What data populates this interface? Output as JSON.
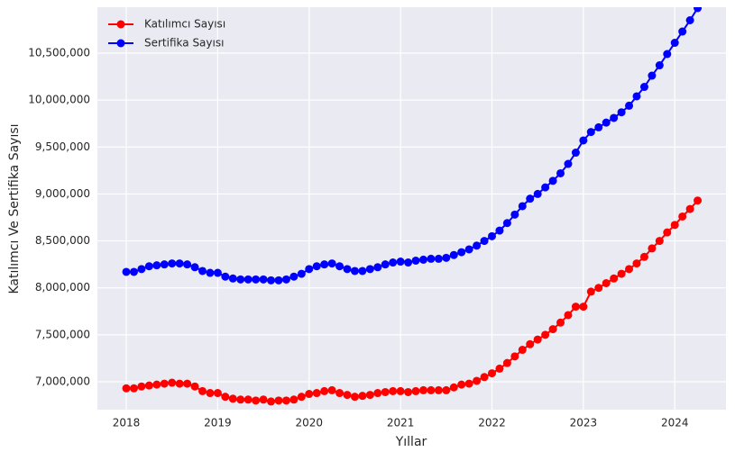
{
  "chart_data": {
    "type": "line",
    "xlabel": "Yıllar",
    "ylabel": "Katılımcı Ve Sertifika Sayısı",
    "x": [
      2018,
      2018.0833,
      2018.1667,
      2018.25,
      2018.3333,
      2018.4167,
      2018.5,
      2018.5833,
      2018.6667,
      2018.75,
      2018.8333,
      2018.9167,
      2019,
      2019.0833,
      2019.1667,
      2019.25,
      2019.3333,
      2019.4167,
      2019.5,
      2019.5833,
      2019.6667,
      2019.75,
      2019.8333,
      2019.9167,
      2020,
      2020.0833,
      2020.1667,
      2020.25,
      2020.3333,
      2020.4167,
      2020.5,
      2020.5833,
      2020.6667,
      2020.75,
      2020.8333,
      2020.9167,
      2021,
      2021.0833,
      2021.1667,
      2021.25,
      2021.3333,
      2021.4167,
      2021.5,
      2021.5833,
      2021.6667,
      2021.75,
      2021.8333,
      2021.9167,
      2022,
      2022.0833,
      2022.1667,
      2022.25,
      2022.3333,
      2022.4167,
      2022.5,
      2022.5833,
      2022.6667,
      2022.75,
      2022.8333,
      2022.9167,
      2023,
      2023.0833,
      2023.1667,
      2023.25,
      2023.3333,
      2023.4167,
      2023.5,
      2023.5833,
      2023.6667,
      2023.75,
      2023.8333,
      2023.9167,
      2024,
      2024.0833,
      2024.1667,
      2024.25
    ],
    "series": [
      {
        "name": "Katılımcı Sayısı",
        "color": "#ff0000",
        "values": [
          6930000,
          6930000,
          6950000,
          6960000,
          6970000,
          6980000,
          6990000,
          6980000,
          6980000,
          6950000,
          6900000,
          6880000,
          6880000,
          6840000,
          6820000,
          6810000,
          6810000,
          6800000,
          6810000,
          6790000,
          6800000,
          6800000,
          6810000,
          6840000,
          6870000,
          6880000,
          6900000,
          6910000,
          6880000,
          6860000,
          6840000,
          6850000,
          6860000,
          6880000,
          6890000,
          6900000,
          6900000,
          6890000,
          6900000,
          6910000,
          6910000,
          6910000,
          6910000,
          6940000,
          6970000,
          6980000,
          7010000,
          7050000,
          7090000,
          7140000,
          7200000,
          7270000,
          7340000,
          7400000,
          7450000,
          7500000,
          7560000,
          7630000,
          7710000,
          7800000,
          7800000,
          7960000,
          8000000,
          8050000,
          8100000,
          8150000,
          8200000,
          8260000,
          8330000,
          8420000,
          8500000,
          8590000,
          8670000,
          8760000,
          8840000,
          8930000
        ]
      },
      {
        "name": "Sertifika Sayısı",
        "color": "#0000ff",
        "values": [
          8170000,
          8170000,
          8200000,
          8230000,
          8240000,
          8250000,
          8260000,
          8260000,
          8250000,
          8220000,
          8180000,
          8160000,
          8160000,
          8120000,
          8100000,
          8090000,
          8090000,
          8090000,
          8090000,
          8080000,
          8080000,
          8090000,
          8120000,
          8150000,
          8200000,
          8230000,
          8250000,
          8260000,
          8230000,
          8200000,
          8180000,
          8180000,
          8200000,
          8220000,
          8250000,
          8270000,
          8280000,
          8270000,
          8290000,
          8300000,
          8310000,
          8310000,
          8320000,
          8350000,
          8380000,
          8410000,
          8450000,
          8500000,
          8550000,
          8610000,
          8690000,
          8780000,
          8870000,
          8950000,
          9000000,
          9070000,
          9140000,
          9220000,
          9320000,
          9440000,
          9570000,
          9660000,
          9710000,
          9760000,
          9810000,
          9870000,
          9940000,
          10040000,
          10140000,
          10260000,
          10370000,
          10490000,
          10610000,
          10730000,
          10850000,
          10980000
        ]
      }
    ],
    "xlim": [
      2017.684,
      2024.56
    ],
    "xticks": [
      2018,
      2019,
      2020,
      2021,
      2022,
      2023,
      2024
    ],
    "ylim": [
      6702700,
      10989000
    ],
    "yticks": [
      {
        "value": 7000000,
        "label": "7,000,000"
      },
      {
        "value": 7500000,
        "label": "7,500,000"
      },
      {
        "value": 8000000,
        "label": "8,000,000"
      },
      {
        "value": 8500000,
        "label": "8,500,000"
      },
      {
        "value": 9000000,
        "label": "9,000,000"
      },
      {
        "value": 9500000,
        "label": "9,500,000"
      },
      {
        "value": 10000000,
        "label": "10,000,000"
      },
      {
        "value": 10500000,
        "label": "10,500,000"
      }
    ],
    "grid": true,
    "legend": "upper left"
  }
}
